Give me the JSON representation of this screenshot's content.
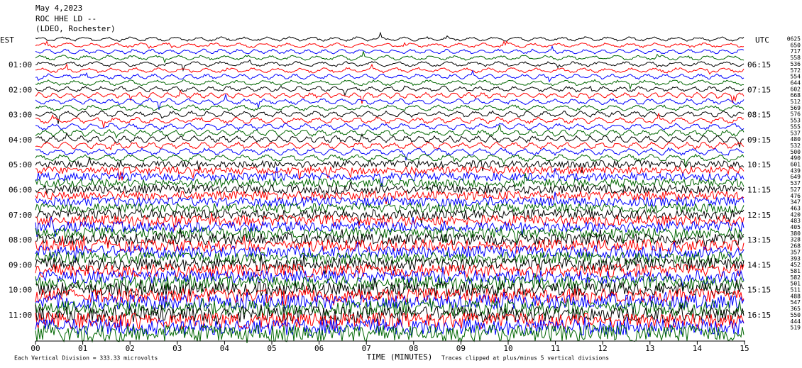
{
  "header": {
    "date": "May 4,2023",
    "station": "ROC HHE LD --",
    "network": "(LDEO, Rochester)"
  },
  "left_axis": {
    "title": "EST",
    "labels": [
      "01:00",
      "02:00",
      "03:00",
      "04:00",
      "05:00",
      "06:00",
      "07:00",
      "08:00",
      "09:00",
      "10:00",
      "11:00"
    ]
  },
  "right_axis": {
    "title": "UTC",
    "labels": [
      "06:15",
      "07:15",
      "08:15",
      "09:15",
      "10:15",
      "11:15",
      "12:15",
      "13:15",
      "14:15",
      "15:15",
      "16:15"
    ]
  },
  "trace_levels": [
    "0625",
    "650",
    "717",
    "558",
    "536",
    "572",
    "554",
    "644",
    "602",
    "668",
    "512",
    "569",
    "576",
    "553",
    "555",
    "537",
    "480",
    "532",
    "500",
    "490",
    "601",
    "439",
    "649",
    "537",
    "527",
    "476",
    "347",
    "463",
    "420",
    "483",
    "405",
    "380",
    "328",
    "268",
    "357",
    "393",
    "452",
    "581",
    "582",
    "501",
    "511",
    "488",
    "547",
    "365",
    "550",
    "444",
    "519"
  ],
  "x_axis": {
    "ticks": [
      "00",
      "01",
      "02",
      "03",
      "04",
      "05",
      "06",
      "07",
      "08",
      "09",
      "10",
      "11",
      "12",
      "13",
      "14",
      "15"
    ],
    "title": "TIME (MINUTES)"
  },
  "footer": {
    "scale": "Each Vertical Division =  333.33 microvolts",
    "clip": "Traces clipped at plus/minus 5 vertical divisions"
  }
}
